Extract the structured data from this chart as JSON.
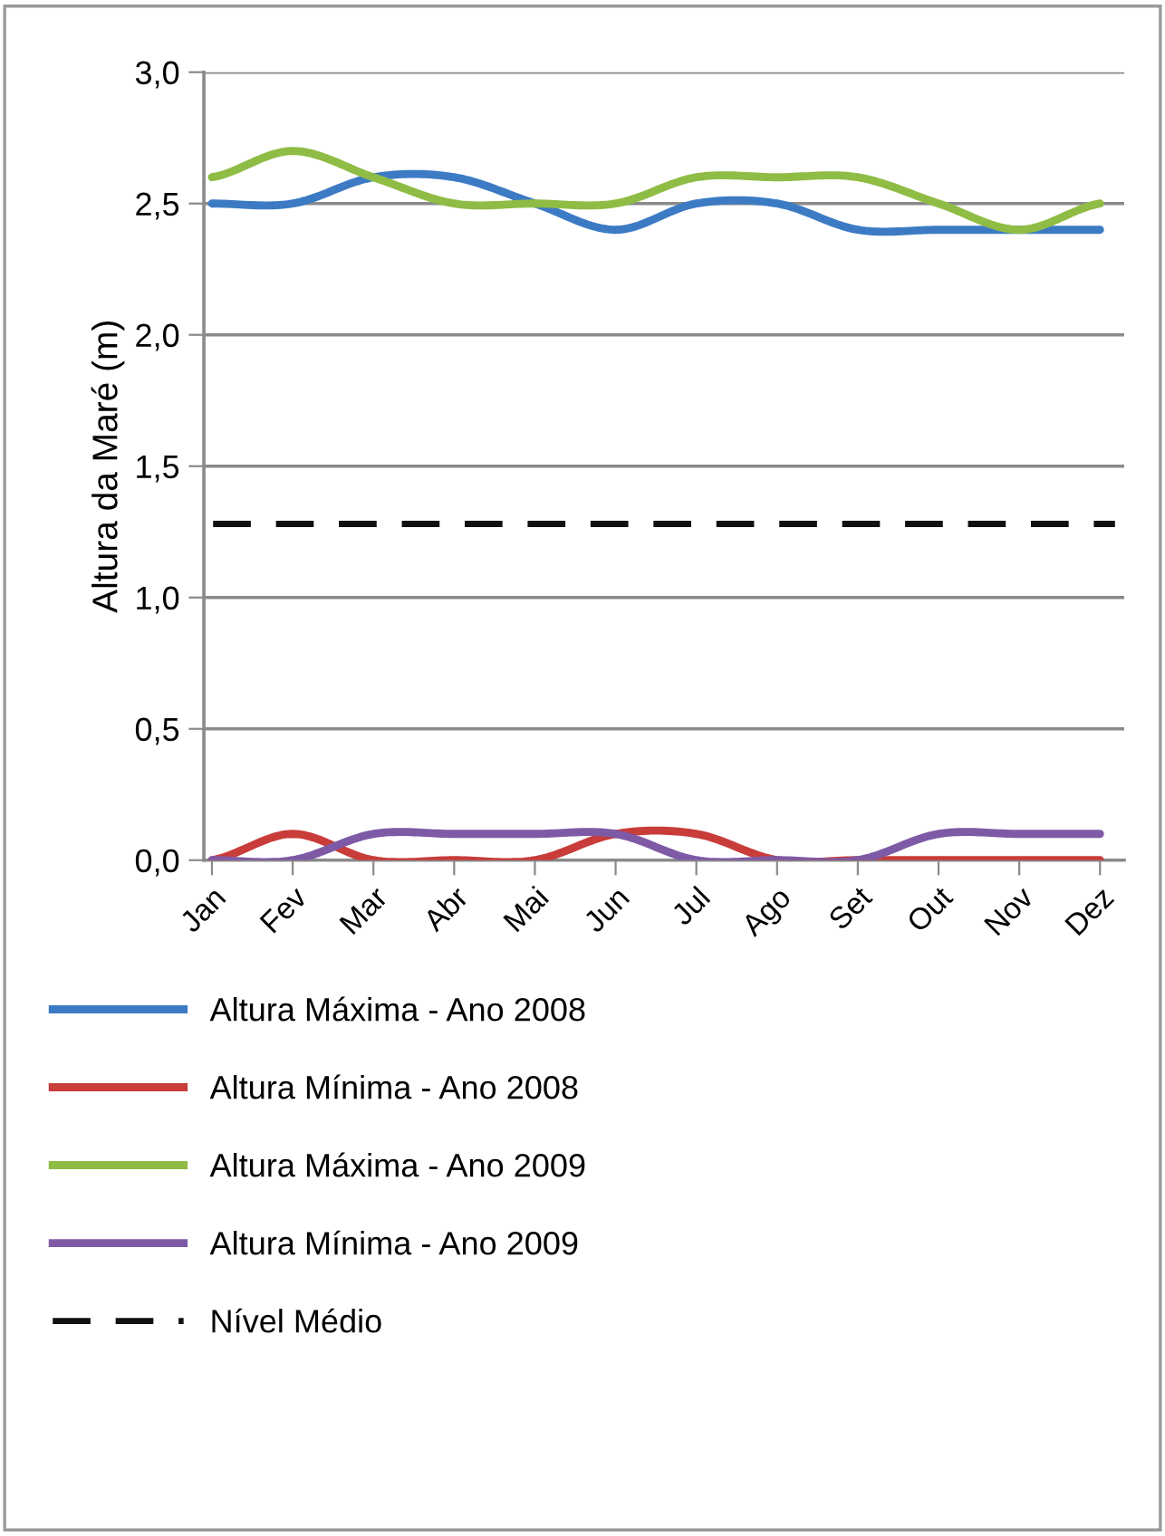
{
  "chart_data": {
    "type": "line",
    "ylabel": "Altura da Maré (m)",
    "categories": [
      "Jan",
      "Fev",
      "Mar",
      "Abr",
      "Mai",
      "Jun",
      "Jul",
      "Ago",
      "Set",
      "Out",
      "Nov",
      "Dez"
    ],
    "series": [
      {
        "name": "Altura Máxima - Ano 2008",
        "color": "#3c7bc4",
        "values": [
          2.5,
          2.5,
          2.6,
          2.6,
          2.5,
          2.4,
          2.5,
          2.5,
          2.4,
          2.4,
          2.4,
          2.4
        ]
      },
      {
        "name": "Altura Mínima - Ano 2008",
        "color": "#c83c3a",
        "values": [
          0,
          0.1,
          0,
          0,
          0,
          0.1,
          0.1,
          0,
          0,
          0,
          0,
          0
        ]
      },
      {
        "name": "Altura Máxima - Ano 2009",
        "color": "#8fbc44",
        "values": [
          2.6,
          2.7,
          2.6,
          2.5,
          2.5,
          2.5,
          2.6,
          2.6,
          2.6,
          2.5,
          2.4,
          2.5
        ]
      },
      {
        "name": "Altura Mínima - Ano 2009",
        "color": "#7e5aa6",
        "values": [
          0,
          0,
          0.1,
          0.1,
          0.1,
          0.1,
          0,
          0,
          0,
          0.1,
          0.1,
          0.1
        ]
      }
    ],
    "ref_lines": [
      {
        "axis": "y",
        "value": 1.28,
        "label": "Nível Médio",
        "color": "#111111",
        "line_style": "dashed"
      }
    ],
    "ylim": [
      0,
      3
    ],
    "yticks": [
      {
        "value": 0,
        "label": "0,0"
      },
      {
        "value": 0.5,
        "label": "0,5"
      },
      {
        "value": 1,
        "label": "1,0"
      },
      {
        "value": 1.5,
        "label": "1,5"
      },
      {
        "value": 2,
        "label": "2,0"
      },
      {
        "value": 2.5,
        "label": "2,5"
      },
      {
        "value": 3,
        "label": "3,0"
      }
    ],
    "grid": "y",
    "legend": "bottom",
    "marker": "none",
    "line_style": "solid"
  }
}
